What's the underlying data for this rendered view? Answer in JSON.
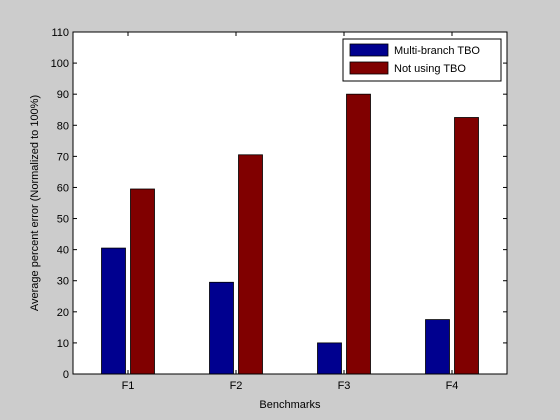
{
  "chart_data": {
    "type": "bar",
    "title": "",
    "xlabel": "Benchmarks",
    "ylabel": "Average percent error (Normalized to 100%)",
    "categories": [
      "F1",
      "F2",
      "F3",
      "F4"
    ],
    "ylim": [
      0,
      110
    ],
    "yticks": [
      0,
      10,
      20,
      30,
      40,
      50,
      60,
      70,
      80,
      90,
      100,
      110
    ],
    "grid": false,
    "legend_position": "top-right",
    "series": [
      {
        "name": "Multi-branch TBO",
        "color": "#00008f",
        "values": [
          40.5,
          29.5,
          10,
          17.5
        ]
      },
      {
        "name": "Not using TBO",
        "color": "#800000",
        "values": [
          59.5,
          70.5,
          90,
          82.5
        ]
      }
    ]
  }
}
